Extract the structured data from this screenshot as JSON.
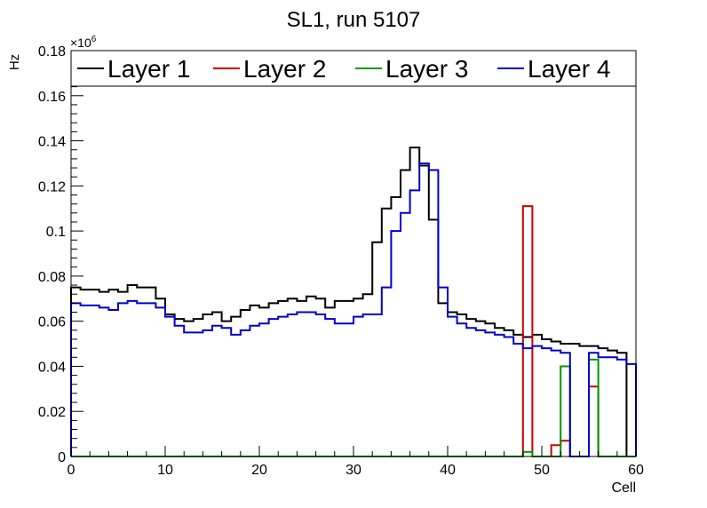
{
  "chart_data": {
    "type": "line",
    "title": "SL1, run 5107",
    "xlabel": "Cell",
    "ylabel": "Hz",
    "y_multiplier_label": "×10",
    "y_multiplier_exponent": "6",
    "xlim": [
      0,
      60
    ],
    "ylim": [
      0,
      0.18
    ],
    "x_ticks": [
      0,
      10,
      20,
      30,
      40,
      50,
      60
    ],
    "x_tick_labels": [
      "0",
      "10",
      "20",
      "30",
      "40",
      "50",
      "60"
    ],
    "y_ticks": [
      0,
      0.02,
      0.04,
      0.06,
      0.08,
      0.1,
      0.12,
      0.14,
      0.16,
      0.18
    ],
    "y_tick_labels": [
      "0",
      "0.02",
      "0.04",
      "0.06",
      "0.08",
      "0.1",
      "0.12",
      "0.14",
      "0.16",
      "0.18"
    ],
    "grid": false,
    "legend_position": "top",
    "bin_edges_start": 0,
    "bin_width": 1,
    "series": [
      {
        "name": "Layer 1",
        "color": "#000000",
        "values": [
          0.075,
          0.074,
          0.074,
          0.073,
          0.074,
          0.073,
          0.076,
          0.075,
          0.075,
          0.07,
          0.063,
          0.061,
          0.06,
          0.061,
          0.063,
          0.064,
          0.06,
          0.062,
          0.065,
          0.067,
          0.066,
          0.068,
          0.069,
          0.07,
          0.069,
          0.071,
          0.07,
          0.066,
          0.069,
          0.069,
          0.07,
          0.072,
          0.095,
          0.11,
          0.115,
          0.127,
          0.137,
          0.129,
          0.105,
          0.068,
          0.064,
          0.063,
          0.061,
          0.06,
          0.059,
          0.057,
          0.056,
          0.054,
          0.053,
          0.054,
          0.052,
          0.051,
          0.05,
          0.05,
          0.049,
          0.049,
          0.048,
          0.047,
          0.046,
          0.0
        ]
      },
      {
        "name": "Layer 2",
        "color": "#cc0000",
        "values": [
          0,
          0,
          0,
          0,
          0,
          0,
          0,
          0,
          0,
          0,
          0,
          0,
          0,
          0,
          0,
          0,
          0,
          0,
          0,
          0,
          0,
          0,
          0,
          0,
          0,
          0,
          0,
          0,
          0,
          0,
          0,
          0,
          0,
          0,
          0,
          0,
          0,
          0,
          0,
          0,
          0,
          0,
          0,
          0,
          0,
          0,
          0,
          0,
          0.111,
          0,
          0,
          0.005,
          0.007,
          0,
          0,
          0.031,
          0,
          0,
          0,
          0
        ]
      },
      {
        "name": "Layer 3",
        "color": "#009900",
        "values": [
          0,
          0,
          0,
          0,
          0,
          0,
          0,
          0,
          0,
          0,
          0,
          0,
          0,
          0,
          0,
          0,
          0,
          0,
          0,
          0,
          0,
          0,
          0,
          0,
          0,
          0,
          0,
          0,
          0,
          0,
          0,
          0,
          0,
          0,
          0,
          0,
          0,
          0,
          0,
          0,
          0,
          0,
          0,
          0,
          0,
          0,
          0,
          0,
          0.002,
          0,
          0,
          0,
          0.04,
          0,
          0,
          0.043,
          0,
          0,
          0,
          0
        ]
      },
      {
        "name": "Layer 4",
        "color": "#0000cc",
        "values": [
          0.068,
          0.067,
          0.067,
          0.066,
          0.065,
          0.068,
          0.069,
          0.068,
          0.068,
          0.066,
          0.062,
          0.058,
          0.055,
          0.055,
          0.056,
          0.058,
          0.057,
          0.054,
          0.056,
          0.058,
          0.059,
          0.061,
          0.062,
          0.063,
          0.064,
          0.064,
          0.063,
          0.061,
          0.059,
          0.059,
          0.062,
          0.063,
          0.063,
          0.075,
          0.1,
          0.108,
          0.118,
          0.13,
          0.127,
          0.075,
          0.062,
          0.059,
          0.057,
          0.056,
          0.055,
          0.054,
          0.053,
          0.05,
          0.048,
          0.049,
          0.048,
          0.047,
          0.046,
          0.0,
          0.0,
          0.046,
          0.044,
          0.044,
          0.043,
          0.041
        ]
      }
    ]
  }
}
